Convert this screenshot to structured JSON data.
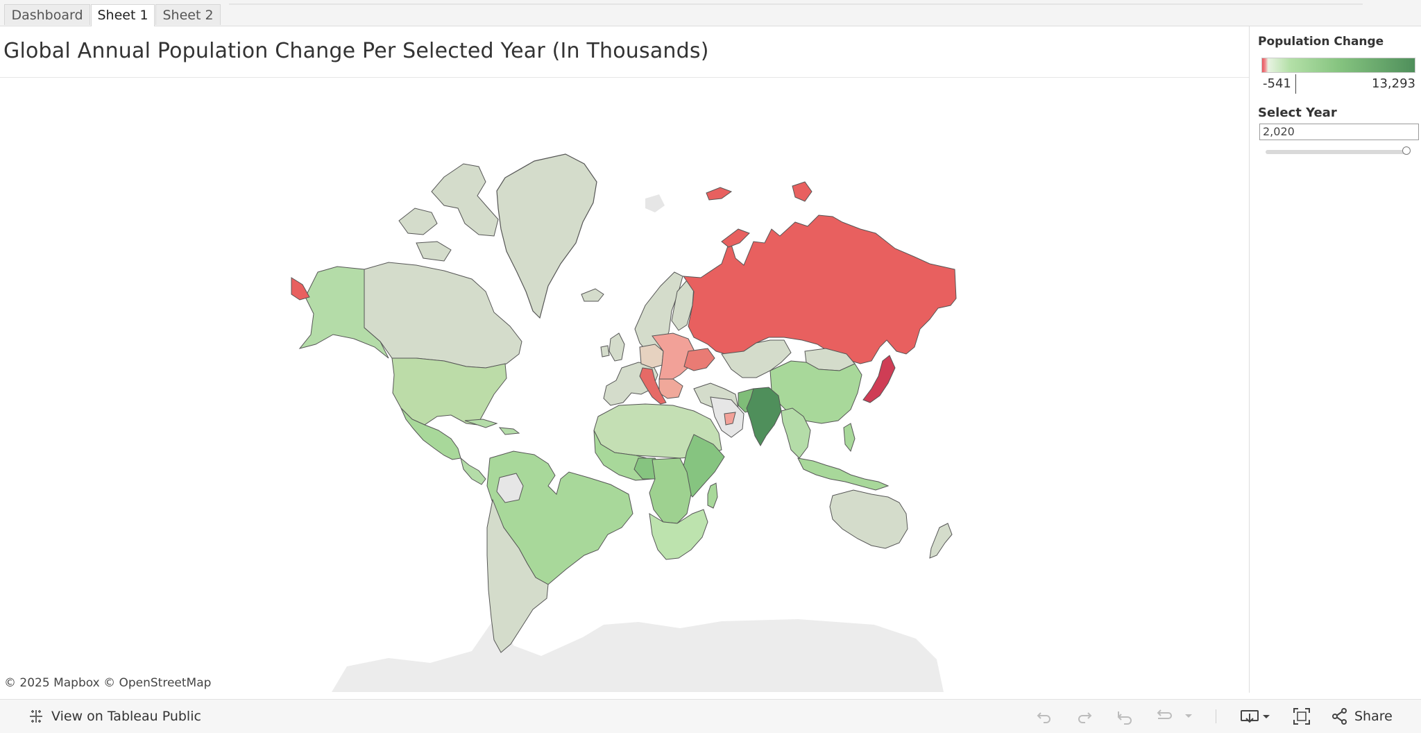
{
  "tabs": [
    {
      "label": "Dashboard",
      "active": false
    },
    {
      "label": "Sheet 1",
      "active": true
    },
    {
      "label": "Sheet 2",
      "active": false
    }
  ],
  "worksheet": {
    "title": "Global Annual Population Change Per Selected Year (In Thousands)"
  },
  "legend": {
    "title": "Population Change",
    "min_label": "-541",
    "max_label": "13,293",
    "min_value": -541,
    "max_value": 13293,
    "colors": {
      "negative": "#e8535b",
      "neutral": "#d4dccb",
      "positive_low": "#b4e0a8",
      "positive_high": "#4f8f5b"
    }
  },
  "year_filter": {
    "title": "Select Year",
    "value": "2,020",
    "slider_position": 1.0
  },
  "map": {
    "attribution": "© 2025 Mapbox  © OpenStreetMap",
    "highlighted_regions": {
      "strongest_growth": "india",
      "decline": [
        "russia",
        "japan",
        "eastern-europe",
        "italy"
      ]
    }
  },
  "toolbar": {
    "view_on_tableau_label": "View on Tableau Public",
    "share_label": "Share",
    "icons": [
      "tableau-logo-icon",
      "undo-icon",
      "redo-icon",
      "revert-icon",
      "refresh-icon",
      "pause-menu-icon",
      "download-icon",
      "fullscreen-icon",
      "share-icon"
    ]
  }
}
